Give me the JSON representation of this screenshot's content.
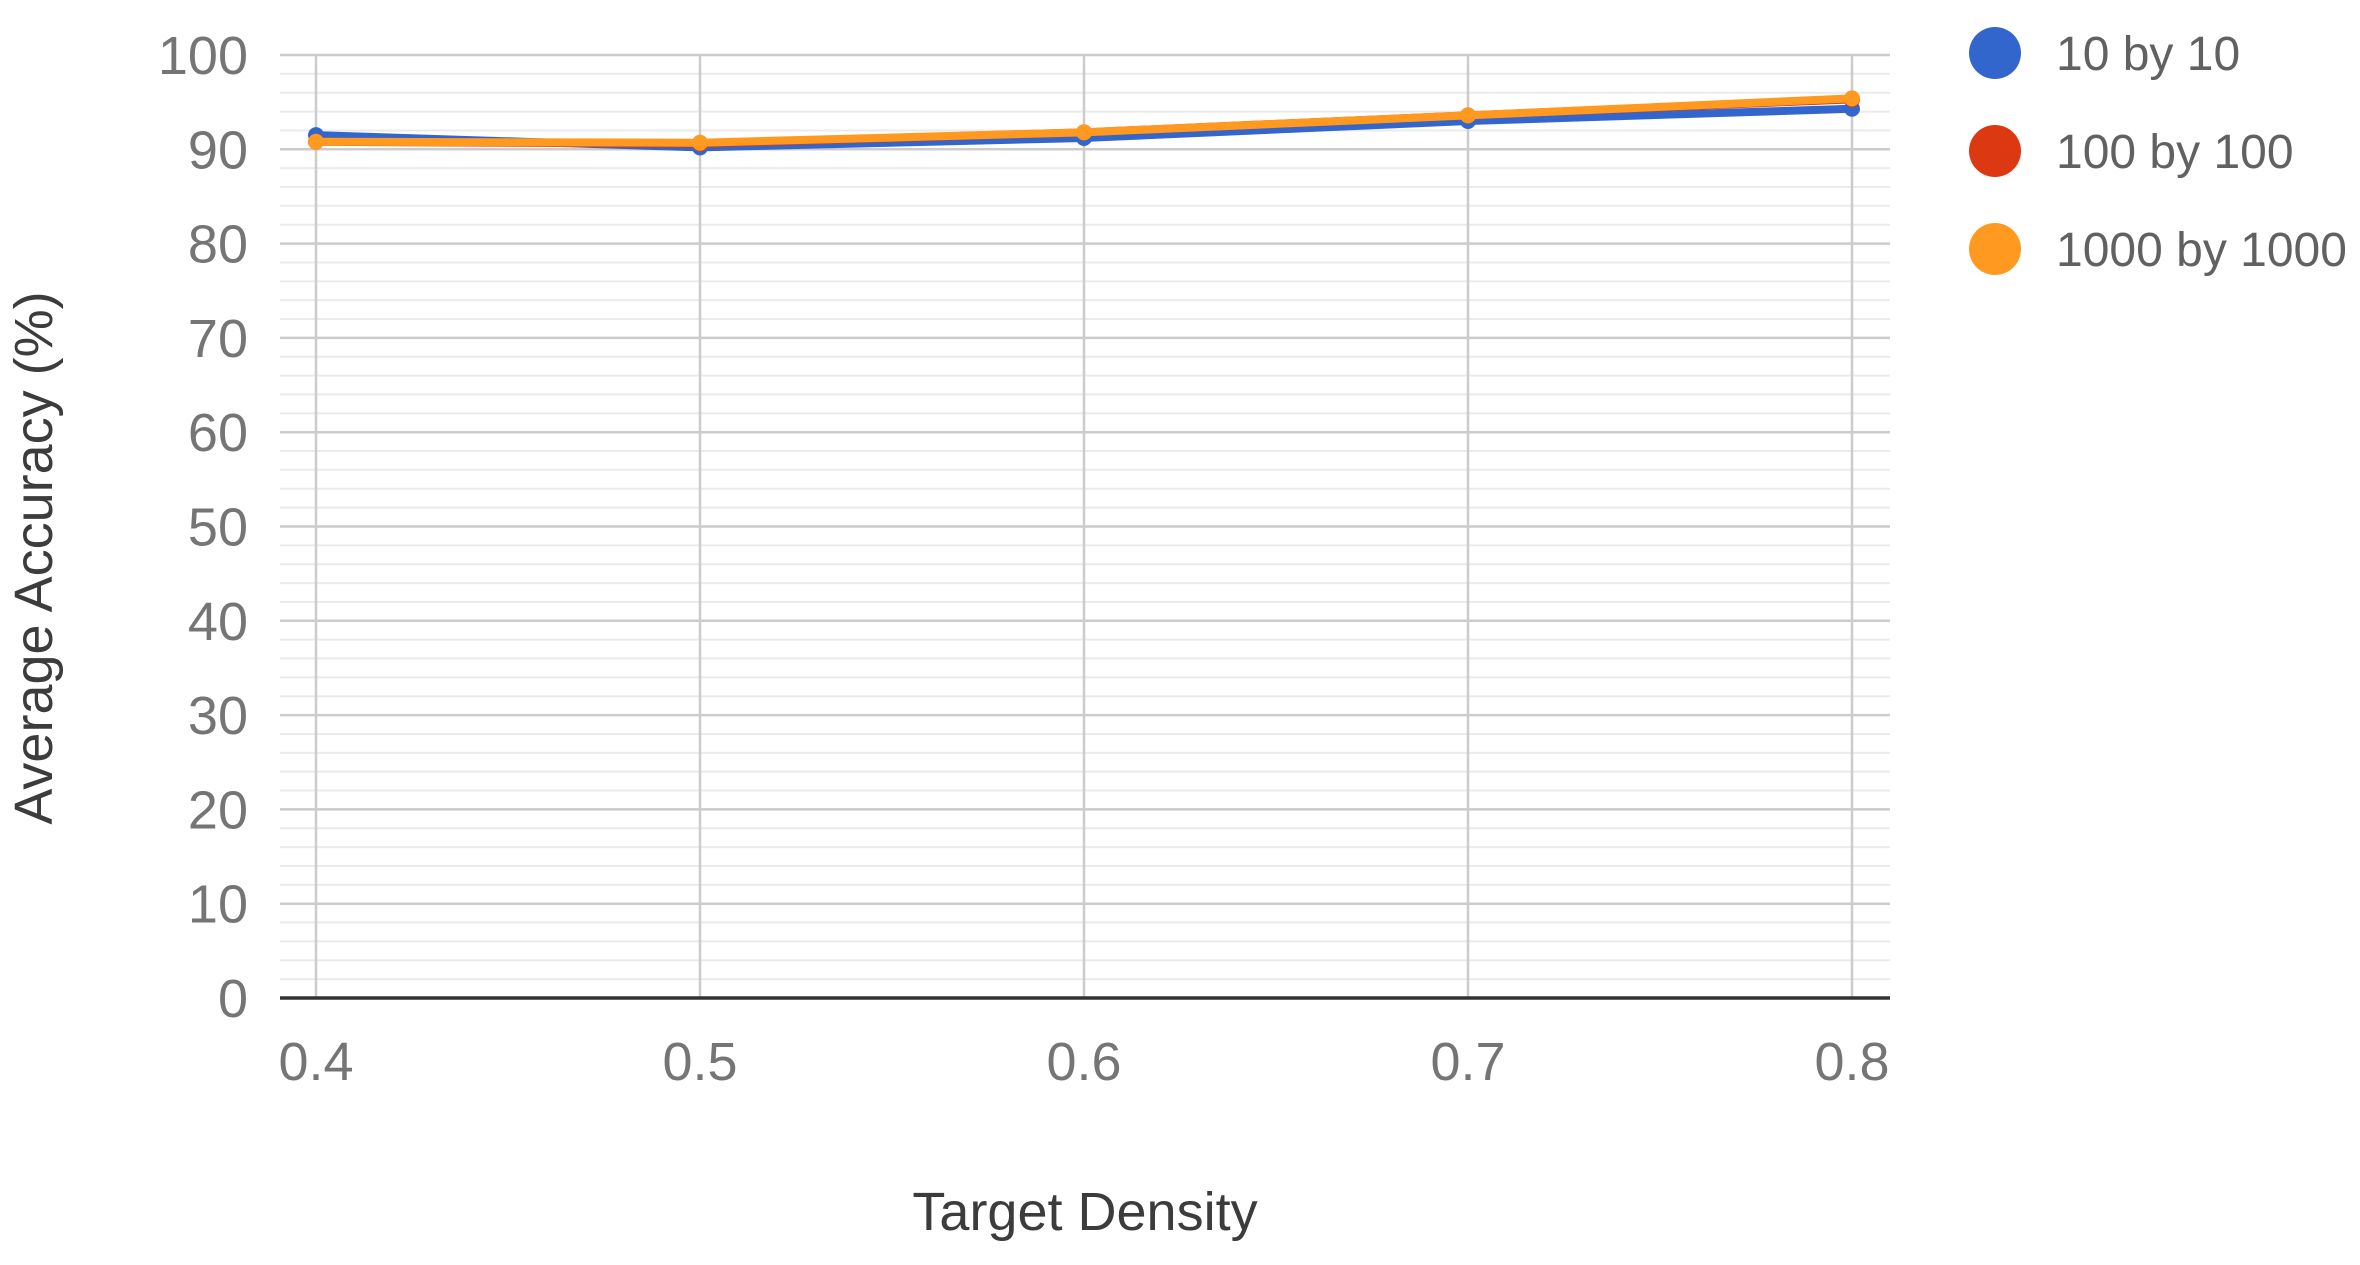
{
  "chart_data": {
    "type": "line",
    "xlabel": "Target Density",
    "ylabel": "Average Accuracy (%)",
    "x": [
      0.4,
      0.5,
      0.6,
      0.7,
      0.8
    ],
    "x_tick_labels": [
      "0.4",
      "0.5",
      "0.6",
      "0.7",
      "0.8"
    ],
    "ylim": [
      0,
      100
    ],
    "y_major_ticks": [
      0,
      10,
      20,
      30,
      40,
      50,
      60,
      70,
      80,
      90,
      100
    ],
    "y_minor_step": 2,
    "grid": true,
    "legend_position": "right",
    "series": [
      {
        "name": "10 by 10",
        "color": "#3366cc",
        "values": [
          91.5,
          90.2,
          91.2,
          93.0,
          94.3
        ]
      },
      {
        "name": "100 by 100",
        "color": "#dc3912",
        "values": [
          90.8,
          90.6,
          91.8,
          93.6,
          95.3
        ]
      },
      {
        "name": "1000 by 1000",
        "color": "#ff9920",
        "values": [
          90.8,
          90.7,
          91.8,
          93.6,
          95.4
        ]
      }
    ]
  }
}
